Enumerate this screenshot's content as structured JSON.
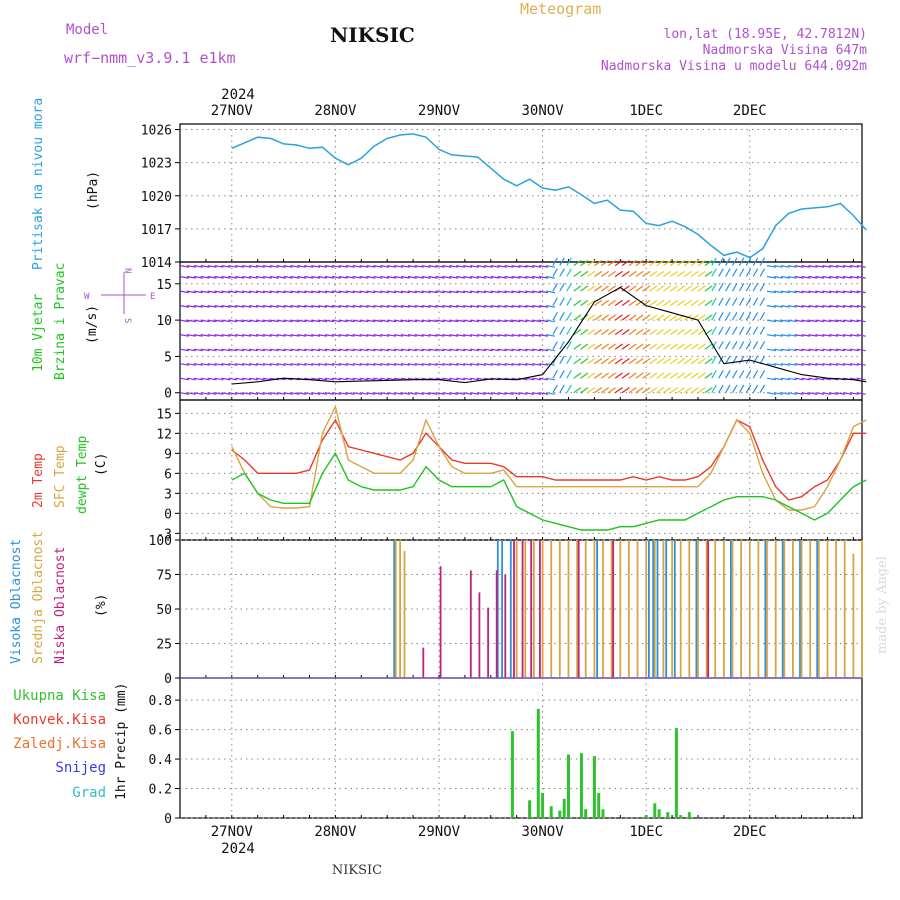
{
  "header": {
    "model_label": "Model",
    "model_name": "wrf−nmm_v3.9.1 e1km",
    "station": "NIKSIC",
    "product": "Meteogram",
    "coords": "lon,lat (18.95E, 42.7812N)",
    "elevation": "Nadmorska Visina 647m",
    "model_elevation": "Nadmorska Visina u modelu 644.092m"
  },
  "footer": {
    "station": "NIKSIC",
    "credit": "made by Angel"
  },
  "time_axis": {
    "year": "2024",
    "days": [
      "27NOV",
      "28NOV",
      "29NOV",
      "30NOV",
      "1DEC",
      "2DEC"
    ]
  },
  "colors": {
    "pressure": "#2ba2e0",
    "t2m": "#e83a2e",
    "sfc": "#d9a441",
    "dewpoint": "#1fc41f",
    "high_cloud": "#2e8fdc",
    "mid_cloud": "#d9a441",
    "low_cloud": "#c2207a",
    "precip_total": "#30c030",
    "label_purple": "#b050d0",
    "label_gold": "#e0b050"
  },
  "panels": {
    "pressure": {
      "ylabel": "Pritisak na nivou mora",
      "unit": "(hPa)"
    },
    "wind": {
      "ylabel1": "10m Vjetar",
      "ylabel2": "Brzina i Pravac",
      "unit": "(m/s)",
      "compass": "N",
      "west": "W",
      "east": "E",
      "south": "S"
    },
    "temp": {
      "l1": "2m Temp",
      "l2": "SFC Temp",
      "l3": "dewpt Temp",
      "unit": "(C)"
    },
    "cloud": {
      "l1": "Visoka Oblacnost",
      "l2": "Srednja Oblacnost",
      "l3": "Niska Oblacnost",
      "unit": "(%)"
    },
    "precip": {
      "unit": "1hr Precip (mm)",
      "legend": [
        "Ukupna Kisa",
        "Konvek.Kisa",
        "Zaledj.Kisa",
        "Snijeg",
        "Grad"
      ]
    }
  },
  "chart_data": [
    {
      "type": "line",
      "name": "pressure",
      "ylabel": "Pritisak na nivou mora (hPa)",
      "ylim": [
        1014,
        1026.5
      ],
      "yticks": [
        1014,
        1017,
        1020,
        1023,
        1026
      ],
      "x_hours": [
        0,
        3,
        6,
        9,
        12,
        15,
        18,
        21,
        24,
        27,
        30,
        33,
        36,
        39,
        42,
        45,
        48,
        51,
        54,
        57,
        60,
        63,
        66,
        69,
        72,
        75,
        78,
        81,
        84,
        87,
        90,
        93,
        96,
        99,
        102,
        105,
        108,
        111,
        114,
        117,
        120,
        123,
        126,
        129,
        132,
        135,
        138,
        141,
        144,
        147
      ],
      "values": [
        1024.3,
        1024.8,
        1025.3,
        1025.2,
        1024.7,
        1024.6,
        1024.3,
        1024.4,
        1023.4,
        1022.8,
        1023.4,
        1024.5,
        1025.2,
        1025.5,
        1025.6,
        1025.3,
        1024.2,
        1023.7,
        1023.6,
        1023.5,
        1022.5,
        1021.5,
        1020.9,
        1021.5,
        1020.7,
        1020.5,
        1020.8,
        1020.1,
        1019.3,
        1019.6,
        1018.7,
        1018.6,
        1017.5,
        1017.3,
        1017.7,
        1017.2,
        1016.5,
        1015.5,
        1014.6,
        1014.9,
        1014.4,
        1015.2,
        1017.3,
        1018.4,
        1018.8,
        1018.9,
        1019.0,
        1019.3,
        1018.2,
        1016.9
      ]
    },
    {
      "type": "line",
      "name": "wind_speed",
      "ylabel": "10m Vjetar Brzina i Pravac (m/s)",
      "ylim": [
        -1,
        18
      ],
      "yticks": [
        0,
        5,
        10,
        15
      ],
      "x_hours": [
        0,
        6,
        12,
        18,
        24,
        30,
        36,
        42,
        48,
        54,
        60,
        66,
        72,
        78,
        84,
        90,
        96,
        102,
        108,
        114,
        120,
        126,
        132,
        138,
        144,
        147
      ],
      "values": [
        1.2,
        1.5,
        2.0,
        1.8,
        1.5,
        1.6,
        1.7,
        1.8,
        1.8,
        1.4,
        1.9,
        1.8,
        2.5,
        7.0,
        12.5,
        14.5,
        12.0,
        11.0,
        10.0,
        4.0,
        4.5,
        3.5,
        2.5,
        2.0,
        1.8,
        1.5
      ]
    },
    {
      "type": "line",
      "name": "temperature",
      "ylabel": "(C)",
      "ylim": [
        -4,
        17
      ],
      "yticks": [
        -3,
        0,
        3,
        6,
        9,
        12,
        15
      ],
      "x_hours": [
        0,
        3,
        6,
        9,
        12,
        15,
        18,
        21,
        24,
        27,
        30,
        33,
        36,
        39,
        42,
        45,
        48,
        51,
        54,
        57,
        60,
        63,
        66,
        69,
        72,
        75,
        78,
        81,
        84,
        87,
        90,
        93,
        96,
        99,
        102,
        105,
        108,
        111,
        114,
        117,
        120,
        123,
        126,
        129,
        132,
        135,
        138,
        141,
        144,
        147
      ],
      "series": [
        {
          "name": "2m Temp",
          "values": [
            9.5,
            8,
            6,
            6,
            6,
            6,
            6.5,
            11,
            14,
            10,
            9.5,
            9,
            8.5,
            8,
            9,
            12,
            10,
            8,
            7.5,
            7.5,
            7.5,
            7,
            5.5,
            5.5,
            5.5,
            5,
            5,
            5,
            5,
            5,
            5,
            5.5,
            5,
            5.5,
            5,
            5,
            5.5,
            7,
            10,
            14,
            13,
            8,
            4,
            2,
            2.5,
            4,
            5,
            8,
            12,
            12
          ]
        },
        {
          "name": "SFC Temp",
          "values": [
            10,
            6,
            3,
            1,
            0.8,
            0.8,
            1,
            12,
            16,
            8,
            7,
            6,
            6,
            6,
            8,
            14,
            10,
            7,
            6,
            6,
            6,
            6.5,
            4,
            4,
            4,
            4,
            4,
            4,
            4,
            4,
            4,
            4,
            4,
            4,
            4,
            4,
            4,
            6,
            10,
            14,
            12,
            6,
            2,
            0.5,
            0.5,
            1,
            4,
            8,
            13,
            14
          ]
        },
        {
          "name": "dewpt Temp",
          "values": [
            5,
            6,
            3,
            2,
            1.5,
            1.5,
            1.5,
            6,
            9,
            5,
            4,
            3.5,
            3.5,
            3.5,
            4,
            7,
            5,
            4,
            4,
            4,
            4,
            5,
            1,
            0,
            -1,
            -1.5,
            -2,
            -2.5,
            -2.5,
            -2.5,
            -2,
            -2,
            -1.5,
            -1,
            -1,
            -1,
            0,
            1,
            2,
            2.5,
            2.5,
            2.5,
            2,
            1,
            0,
            -1,
            0,
            2,
            4,
            5
          ]
        }
      ]
    },
    {
      "type": "bar",
      "name": "cloud_cover",
      "ylabel": "(%)",
      "ylim": [
        0,
        100
      ],
      "yticks": [
        0,
        25,
        50,
        75,
        100
      ],
      "series": [
        {
          "name": "Visoka Oblacnost",
          "x_hours": [
            38,
            62,
            63,
            65,
            85,
            97,
            98,
            99,
            101,
            103,
            108,
            116,
            124,
            128,
            132,
            136
          ],
          "values": [
            100,
            100,
            100,
            100,
            100,
            100,
            100,
            100,
            100,
            100,
            100,
            100,
            100,
            100,
            100,
            100
          ]
        },
        {
          "name": "Srednja Oblacnost",
          "x_hours": [
            38,
            39,
            40,
            66,
            68,
            70,
            72,
            74,
            76,
            78,
            80,
            82,
            84,
            86,
            88,
            90,
            92,
            94,
            96,
            98,
            100,
            102,
            104,
            106,
            108,
            110,
            112,
            114,
            116,
            118,
            120,
            122,
            124,
            126,
            128,
            130,
            132,
            134,
            136,
            138,
            140,
            142,
            144,
            146
          ],
          "values": [
            100,
            100,
            92,
            100,
            100,
            100,
            100,
            100,
            100,
            100,
            100,
            100,
            100,
            100,
            100,
            100,
            100,
            100,
            100,
            100,
            100,
            100,
            100,
            100,
            100,
            100,
            100,
            100,
            100,
            100,
            100,
            100,
            100,
            100,
            100,
            100,
            100,
            100,
            100,
            100,
            100,
            100,
            90,
            100
          ]
        },
        {
          "name": "Niska Oblacnost",
          "x_hours": [
            44,
            48,
            55,
            57,
            59,
            61,
            63,
            65,
            67,
            69,
            71,
            80,
            88,
            110
          ],
          "values": [
            22,
            81,
            78,
            62,
            51,
            78,
            75,
            100,
            100,
            100,
            100,
            100,
            100,
            100
          ]
        }
      ]
    },
    {
      "type": "bar",
      "name": "precipitation",
      "ylabel": "1hr Precip (mm)",
      "ylim": [
        0,
        0.95
      ],
      "yticks": [
        0,
        0.2,
        0.4,
        0.6,
        0.8
      ],
      "series": [
        {
          "name": "Ukupna Kisa",
          "x_hours": [
            65,
            69,
            71,
            72,
            74,
            76,
            77,
            78,
            81,
            82,
            84,
            85,
            86,
            96,
            98,
            99,
            101,
            103,
            104,
            106
          ],
          "values": [
            0.59,
            0.12,
            0.74,
            0.17,
            0.08,
            0.05,
            0.13,
            0.43,
            0.44,
            0.06,
            0.42,
            0.17,
            0.06,
            0.02,
            0.1,
            0.06,
            0.04,
            0.61,
            0.02,
            0.04
          ]
        }
      ]
    }
  ]
}
